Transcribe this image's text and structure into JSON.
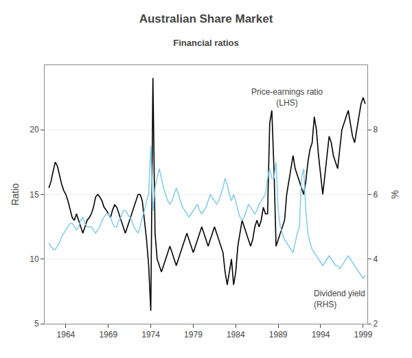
{
  "chart_data": {
    "type": "line",
    "title": "Australian Share Market",
    "subtitle": "Financial ratios",
    "ylabel": "Ratio",
    "y2label": "%",
    "xlim": [
      1961.5,
      1999.5
    ],
    "ylim": [
      5,
      25
    ],
    "y2lim": [
      2,
      10
    ],
    "xticks": [
      1964,
      1969,
      1974,
      1979,
      1984,
      1989,
      1994,
      1999
    ],
    "yticks": [
      5,
      10,
      15,
      20
    ],
    "y2ticks": [
      2,
      4,
      6,
      8
    ],
    "grid": "y",
    "x": [
      1962.0,
      1962.25,
      1962.5,
      1962.75,
      1963.0,
      1963.25,
      1963.5,
      1963.75,
      1964.0,
      1964.25,
      1964.5,
      1964.75,
      1965.0,
      1965.25,
      1965.5,
      1965.75,
      1966.0,
      1966.25,
      1966.5,
      1966.75,
      1967.0,
      1967.25,
      1967.5,
      1967.75,
      1968.0,
      1968.25,
      1968.5,
      1968.75,
      1969.0,
      1969.25,
      1969.5,
      1969.75,
      1970.0,
      1970.25,
      1970.5,
      1970.75,
      1971.0,
      1971.25,
      1971.5,
      1971.75,
      1972.0,
      1972.25,
      1972.5,
      1972.75,
      1973.0,
      1973.25,
      1973.5,
      1973.75,
      1974.0,
      1974.25,
      1974.5,
      1974.75,
      1975.0,
      1975.25,
      1975.5,
      1975.75,
      1976.0,
      1976.25,
      1976.5,
      1976.75,
      1977.0,
      1977.25,
      1977.5,
      1977.75,
      1978.0,
      1978.25,
      1978.5,
      1978.75,
      1979.0,
      1979.25,
      1979.5,
      1979.75,
      1980.0,
      1980.25,
      1980.5,
      1980.75,
      1981.0,
      1981.25,
      1981.5,
      1981.75,
      1982.0,
      1982.25,
      1982.5,
      1982.75,
      1983.0,
      1983.25,
      1983.5,
      1983.75,
      1984.0,
      1984.25,
      1984.5,
      1984.75,
      1985.0,
      1985.25,
      1985.5,
      1985.75,
      1986.0,
      1986.25,
      1986.5,
      1986.75,
      1987.0,
      1987.25,
      1987.5,
      1987.75,
      1988.0,
      1988.25,
      1988.5,
      1988.75,
      1989.0,
      1989.25,
      1989.5,
      1989.75,
      1990.0,
      1990.25,
      1990.5,
      1990.75,
      1991.0,
      1991.25,
      1991.5,
      1991.75,
      1992.0,
      1992.25,
      1992.5,
      1992.75,
      1993.0,
      1993.25,
      1993.5,
      1993.75,
      1994.0,
      1994.25,
      1994.5,
      1994.75,
      1995.0,
      1995.25,
      1995.5,
      1995.75,
      1996.0,
      1996.25,
      1996.5,
      1996.75,
      1997.0,
      1997.25,
      1997.5,
      1997.75,
      1998.0,
      1998.25,
      1998.5,
      1998.75,
      1999.0,
      1999.25
    ],
    "series": [
      {
        "color": "#000000",
        "axis": "y",
        "values": [
          15.5,
          16.0,
          16.8,
          17.5,
          17.2,
          16.5,
          15.8,
          15.3,
          15.0,
          14.5,
          13.8,
          13.2,
          13.0,
          13.5,
          13.0,
          12.5,
          12.0,
          12.5,
          13.0,
          13.2,
          13.5,
          14.0,
          14.8,
          15.0,
          14.8,
          14.5,
          14.0,
          13.8,
          13.5,
          13.2,
          13.8,
          14.2,
          14.0,
          13.5,
          13.0,
          12.5,
          12.0,
          12.5,
          13.0,
          13.5,
          14.0,
          14.5,
          15.0,
          15.0,
          14.5,
          13.0,
          11.5,
          9.5,
          6.0,
          24.0,
          12.0,
          10.0,
          9.5,
          9.0,
          9.5,
          10.0,
          10.5,
          11.0,
          10.5,
          10.0,
          9.5,
          10.0,
          10.5,
          11.0,
          11.5,
          12.0,
          11.5,
          11.0,
          10.5,
          11.0,
          11.5,
          12.0,
          12.5,
          12.0,
          11.5,
          11.0,
          11.5,
          12.0,
          12.5,
          12.0,
          11.5,
          11.0,
          10.5,
          9.0,
          8.0,
          9.0,
          10.0,
          8.0,
          9.0,
          11.0,
          12.0,
          13.0,
          12.5,
          12.0,
          11.5,
          11.0,
          11.5,
          12.5,
          13.0,
          12.5,
          13.0,
          14.0,
          13.5,
          13.5,
          20.5,
          21.5,
          17.0,
          11.0,
          11.5,
          12.0,
          12.5,
          13.0,
          15.0,
          16.0,
          17.0,
          18.0,
          17.0,
          16.5,
          16.0,
          15.5,
          15.0,
          16.0,
          17.5,
          18.5,
          19.0,
          21.0,
          20.0,
          18.0,
          16.5,
          15.0,
          16.5,
          18.0,
          19.5,
          19.0,
          18.0,
          17.5,
          17.0,
          18.5,
          20.0,
          20.5,
          21.0,
          21.5,
          20.5,
          19.5,
          19.0,
          20.0,
          21.0,
          22.0,
          22.5,
          22.0
        ]
      },
      {
        "color": "#87ceeb",
        "axis": "y2",
        "values": [
          4.5,
          4.4,
          4.3,
          4.3,
          4.4,
          4.5,
          4.7,
          4.8,
          4.9,
          5.0,
          5.1,
          5.1,
          5.0,
          4.9,
          5.0,
          5.2,
          5.3,
          5.1,
          5.0,
          5.0,
          5.0,
          4.9,
          4.8,
          4.9,
          5.0,
          5.2,
          5.3,
          5.4,
          5.4,
          5.3,
          5.1,
          5.0,
          5.0,
          5.2,
          5.3,
          5.5,
          5.5,
          5.4,
          5.3,
          5.2,
          5.0,
          4.9,
          4.8,
          5.0,
          5.3,
          5.5,
          5.8,
          6.0,
          7.5,
          5.5,
          6.2,
          6.5,
          6.8,
          6.5,
          6.2,
          6.0,
          5.8,
          5.7,
          5.8,
          6.0,
          6.2,
          6.0,
          5.8,
          5.6,
          5.5,
          5.4,
          5.3,
          5.4,
          5.5,
          5.6,
          5.7,
          5.5,
          5.4,
          5.5,
          5.6,
          5.8,
          6.0,
          5.9,
          5.8,
          5.7,
          5.8,
          6.0,
          6.2,
          6.5,
          6.3,
          6.0,
          5.8,
          6.0,
          5.8,
          5.5,
          5.3,
          5.2,
          5.3,
          5.5,
          5.7,
          5.6,
          5.5,
          5.4,
          5.5,
          5.7,
          5.8,
          5.9,
          6.0,
          6.5,
          6.8,
          6.5,
          6.5,
          7.0,
          5.5,
          5.0,
          4.8,
          4.6,
          4.5,
          4.4,
          4.3,
          4.2,
          4.5,
          4.8,
          5.0,
          6.5,
          6.8,
          5.5,
          4.8,
          4.5,
          4.3,
          4.2,
          4.1,
          4.0,
          3.9,
          3.8,
          3.9,
          4.0,
          4.1,
          4.0,
          3.9,
          3.8,
          3.8,
          3.7,
          3.8,
          3.9,
          4.0,
          4.1,
          4.0,
          3.9,
          3.8,
          3.7,
          3.6,
          3.5,
          3.4,
          3.5
        ]
      }
    ],
    "annotations": [
      {
        "text": "Price-earnings ratio\n(LHS)",
        "x": 1990,
        "y": 22.5
      },
      {
        "text": "Dividend yield\n(RHS)",
        "x": 1993,
        "y": 7.8
      }
    ]
  }
}
